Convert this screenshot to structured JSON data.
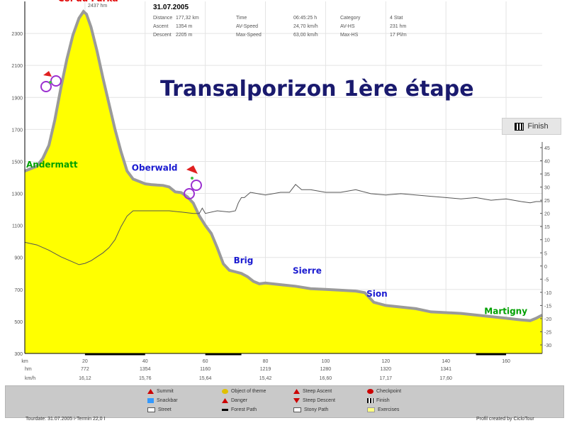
{
  "header": {
    "date": "31.07.2005",
    "peak_label": "2437 hm",
    "stats": [
      {
        "label": "Distance",
        "value": "177,32 km"
      },
      {
        "label": "Ascent",
        "value": "1354 m"
      },
      {
        "label": "Descent",
        "value": "2205 m"
      },
      {
        "label": "Time",
        "value": "06:45:25 h"
      },
      {
        "label": "AV-Speed",
        "value": "24,70 km/h"
      },
      {
        "label": "Max-Speed",
        "value": "63,00 km/h"
      },
      {
        "label": "Category",
        "value": "4 Stat"
      },
      {
        "label": "AV-HS",
        "value": "231 hm"
      },
      {
        "label": "Max-HS",
        "value": "17 Pl/m"
      }
    ]
  },
  "finish_button": {
    "label": "Finish"
  },
  "chart_data": {
    "type": "area",
    "title": "Transalporizon 1ère étape",
    "xlabel": "km",
    "ylabel": "",
    "xlim": [
      0,
      172
    ],
    "ylim": [
      300,
      2500
    ],
    "xticks": [
      0,
      20,
      40,
      60,
      80,
      100,
      120,
      140,
      160
    ],
    "yticks": [
      300,
      500,
      700,
      900,
      1100,
      1300,
      1500,
      1700,
      1900,
      2100,
      2300
    ],
    "y2ticks": [
      45,
      40,
      35,
      30,
      25,
      20,
      15,
      10,
      5,
      0,
      -5,
      -10,
      -15,
      -20,
      -25,
      -30
    ],
    "series": [
      {
        "kind": "altitude",
        "color": "#ffff00",
        "x": [
          0,
          2,
          4,
          6,
          8,
          10,
          12,
          14,
          16,
          18,
          19.5,
          20.5,
          22,
          24,
          26,
          28,
          30,
          32,
          34,
          36,
          38,
          40,
          42,
          44,
          46,
          48,
          50,
          52,
          54,
          56,
          58,
          60,
          62,
          64,
          66,
          68,
          70,
          72,
          74,
          76,
          78,
          80,
          85,
          90,
          95,
          100,
          105,
          110,
          113,
          116,
          120,
          125,
          130,
          135,
          140,
          145,
          150,
          155,
          160,
          165,
          168,
          170,
          172
        ],
        "values": [
          1440,
          1455,
          1470,
          1520,
          1600,
          1760,
          1960,
          2140,
          2290,
          2395,
          2437,
          2420,
          2340,
          2190,
          2020,
          1860,
          1700,
          1560,
          1440,
          1390,
          1375,
          1360,
          1355,
          1352,
          1350,
          1340,
          1310,
          1305,
          1280,
          1240,
          1160,
          1100,
          1050,
          960,
          860,
          820,
          810,
          800,
          780,
          750,
          735,
          740,
          730,
          720,
          705,
          700,
          695,
          690,
          680,
          620,
          600,
          590,
          580,
          560,
          555,
          550,
          540,
          530,
          520,
          510,
          505,
          520,
          540
        ]
      },
      {
        "kind": "speed",
        "color": "#555555",
        "x": [
          0,
          4,
          8,
          12,
          16,
          18,
          20,
          22,
          24,
          26,
          28,
          30,
          32,
          34,
          36,
          40,
          44,
          48,
          52,
          56,
          58,
          59,
          60,
          64,
          68,
          70,
          71,
          72,
          73,
          75,
          80,
          85,
          88,
          90,
          92,
          95,
          100,
          105,
          110,
          115,
          120,
          125,
          130,
          135,
          140,
          145,
          150,
          155,
          160,
          165,
          168,
          170,
          172
        ],
        "values": [
          9,
          8,
          6,
          3.5,
          1.5,
          0.5,
          1,
          2,
          3.5,
          5,
          7,
          10,
          15,
          19,
          21,
          21,
          21,
          21,
          20.5,
          20,
          20,
          22,
          20,
          21,
          20.5,
          21,
          24,
          26,
          26,
          28,
          27,
          28,
          28,
          31,
          29,
          29,
          28,
          28,
          29,
          27.5,
          27,
          27.5,
          27,
          26.5,
          26,
          25.5,
          26,
          25,
          25.5,
          24.5,
          24,
          24.5,
          24.5
        ]
      }
    ],
    "x_marks": [
      {
        "label": "hm",
        "values": [
          "772",
          "1354",
          "1160",
          "1219",
          "1280",
          "1320",
          "1341"
        ]
      },
      {
        "label": "km/h",
        "values": [
          "16,12",
          "15,76",
          "15,64",
          "15,42",
          "16,60",
          "17,17",
          "17,60"
        ]
      }
    ],
    "annotations": [
      {
        "text": "Col du Furka",
        "x": 19.5,
        "y": 2437,
        "color": "#e00000"
      },
      {
        "text": "Andermatt",
        "x": 0,
        "y": 1440,
        "color": "#00a000"
      },
      {
        "text": "Oberwald",
        "x": 36,
        "y": 1390,
        "color": "#1a1ad0"
      },
      {
        "text": "Brig",
        "x": 68,
        "y": 820,
        "color": "#1a1ad0"
      },
      {
        "text": "Sierre",
        "x": 90,
        "y": 720,
        "color": "#1a1ad0"
      },
      {
        "text": "Sion",
        "x": 115,
        "y": 620,
        "color": "#1a1ad0"
      },
      {
        "text": "Martigny",
        "x": 165,
        "y": 510,
        "color": "#00a000"
      }
    ]
  },
  "legend": [
    {
      "label": "Summit",
      "icon": "summit-icon",
      "color": "#cc0000"
    },
    {
      "label": "Object of theme",
      "icon": "object-icon",
      "color": "#e0c000"
    },
    {
      "label": "Steep Ascent",
      "icon": "steep-ascent-icon",
      "color": "#cc0000"
    },
    {
      "label": "Checkpoint",
      "icon": "checkpoint-icon",
      "color": "#cc0000"
    },
    {
      "label": "Snackbar",
      "icon": "snackbar-icon",
      "color": "#3399ff"
    },
    {
      "label": "Danger",
      "icon": "danger-icon",
      "color": "#cc0000"
    },
    {
      "label": "Steep Descent",
      "icon": "steep-descent-icon",
      "color": "#cc0000"
    },
    {
      "label": "Finish",
      "icon": "finish-icon",
      "color": "#333333"
    },
    {
      "label": "Street",
      "icon": "street-icon",
      "color": "#ffffff"
    },
    {
      "label": "Forest Path",
      "icon": "forest-path-icon",
      "color": "#000000"
    },
    {
      "label": "Stony Path",
      "icon": "stony-path-icon",
      "color": "#ffffff"
    },
    {
      "label": "Exercises",
      "icon": "exercises-icon",
      "color": "#ffff80"
    }
  ],
  "footer": {
    "tourdate": "Tourdate: 31.07.2005  i-Termin 22,0 I",
    "credit": "Profil created by CicloTour"
  }
}
